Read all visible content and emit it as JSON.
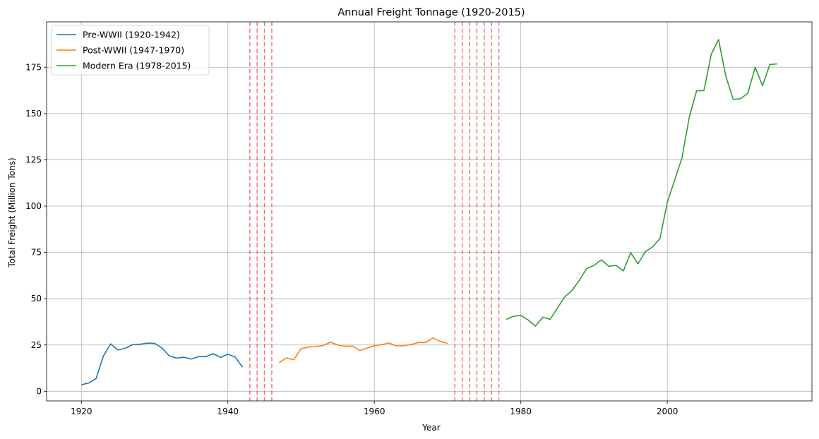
{
  "chart_data": {
    "type": "line",
    "title": "Annual Freight Tonnage (1920-2015)",
    "xlabel": "Year",
    "ylabel": "Total Freight (Million Tons)",
    "xlim": [
      1915.25,
      2019.75
    ],
    "ylim": [
      -5.2,
      199.5
    ],
    "xticks": [
      1920,
      1940,
      1960,
      1980,
      2000
    ],
    "yticks": [
      0,
      25,
      50,
      75,
      100,
      125,
      150,
      175
    ],
    "grid": true,
    "legend_position": "top-left",
    "series": [
      {
        "name": "Pre-WWII (1920-1942)",
        "color": "#1f77b4",
        "x": [
          1920,
          1921,
          1922,
          1923,
          1924,
          1925,
          1926,
          1927,
          1928,
          1929,
          1930,
          1931,
          1932,
          1933,
          1934,
          1935,
          1936,
          1937,
          1938,
          1939,
          1940,
          1941,
          1942
        ],
        "values": [
          3.5,
          4.5,
          6.8,
          19.0,
          25.6,
          22.3,
          23.2,
          25.2,
          25.4,
          26.0,
          25.9,
          23.4,
          19.1,
          17.9,
          18.4,
          17.4,
          18.7,
          18.7,
          20.3,
          18.3,
          20.0,
          18.5,
          13.0
        ]
      },
      {
        "name": "Post-WWII (1947-1970)",
        "color": "#ff7f0e",
        "x": [
          1947,
          1948,
          1949,
          1950,
          1951,
          1952,
          1953,
          1954,
          1955,
          1956,
          1957,
          1958,
          1959,
          1960,
          1961,
          1962,
          1963,
          1964,
          1965,
          1966,
          1967,
          1968,
          1969,
          1970
        ],
        "values": [
          15.5,
          18.0,
          17.0,
          23.0,
          23.9,
          24.2,
          24.7,
          26.5,
          25.0,
          24.3,
          24.4,
          22.0,
          23.3,
          24.6,
          25.2,
          26.1,
          24.5,
          24.6,
          25.2,
          26.3,
          26.3,
          28.8,
          26.9,
          25.9
        ]
      },
      {
        "name": "Modern Era (1978-2015)",
        "color": "#2ca02c",
        "x": [
          1978,
          1979,
          1980,
          1981,
          1982,
          1983,
          1984,
          1985,
          1986,
          1987,
          1988,
          1989,
          1990,
          1991,
          1992,
          1993,
          1994,
          1995,
          1996,
          1997,
          1998,
          1999,
          2000,
          2001,
          2002,
          2003,
          2004,
          2005,
          2006,
          2007,
          2008,
          2009,
          2010,
          2011,
          2012,
          2013,
          2014,
          2015
        ],
        "values": [
          38.8,
          40.5,
          41.0,
          38.5,
          35.2,
          40.0,
          38.8,
          45.0,
          51.0,
          54.5,
          60.0,
          66.3,
          68.0,
          71.0,
          67.5,
          68.0,
          65.0,
          74.8,
          68.8,
          75.4,
          78.0,
          82.5,
          102.0,
          114.0,
          126.0,
          148.0,
          162.3,
          162.4,
          182.0,
          190.0,
          170.0,
          157.6,
          158.0,
          161.0,
          175.0,
          165.0,
          176.5,
          176.8
        ]
      }
    ],
    "vlines": {
      "color": "#ff0000",
      "style": "dashed",
      "x": [
        1943,
        1944,
        1945,
        1946,
        1971,
        1972,
        1973,
        1974,
        1975,
        1976,
        1977
      ]
    }
  }
}
